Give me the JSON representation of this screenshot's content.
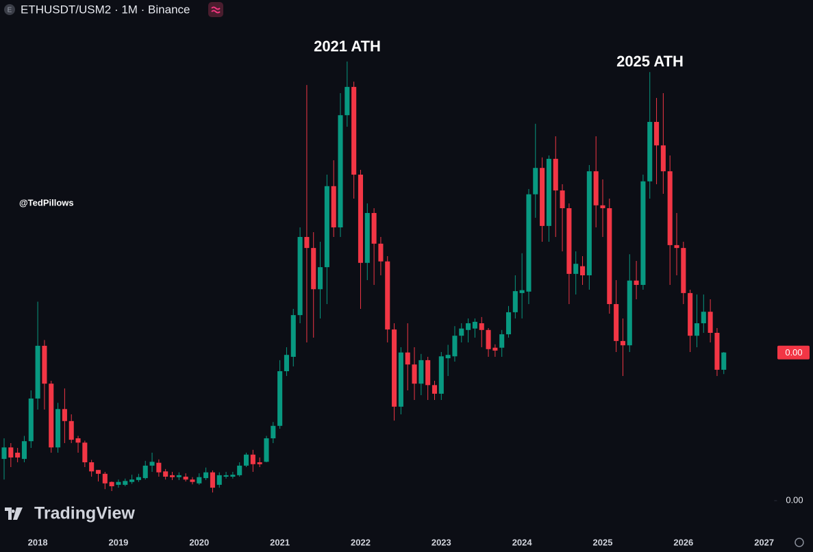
{
  "header": {
    "symbol_icon": "E",
    "title": "ETHUSDT/USM2 · 1M · Binance"
  },
  "watermark": "TradingView",
  "author": "@TedPillows",
  "chart_data": {
    "type": "candlestick",
    "annotations": [
      "2021 ATH",
      "2025 ATH"
    ],
    "up_color": "#089981",
    "down_color": "#f23645",
    "price_tag": "0.00",
    "ylim": [
      -7,
      100
    ],
    "yticks": [
      {
        "value": 0,
        "label": "0.00"
      }
    ],
    "categories": [
      null,
      null,
      null,
      null,
      null,
      "2018",
      null,
      null,
      null,
      null,
      null,
      null,
      null,
      null,
      null,
      null,
      null,
      "2019",
      null,
      null,
      null,
      null,
      null,
      null,
      null,
      null,
      null,
      null,
      null,
      "2020",
      null,
      null,
      null,
      null,
      null,
      null,
      null,
      null,
      null,
      null,
      null,
      "2021",
      null,
      null,
      null,
      null,
      null,
      null,
      null,
      null,
      null,
      null,
      null,
      "2022",
      null,
      null,
      null,
      null,
      null,
      null,
      null,
      null,
      null,
      null,
      null,
      "2023",
      null,
      null,
      null,
      null,
      null,
      null,
      null,
      null,
      null,
      null,
      null,
      "2024",
      null,
      null,
      null,
      null,
      null,
      null,
      null,
      null,
      null,
      null,
      null,
      "2025",
      null,
      null,
      null,
      null,
      null,
      null,
      null,
      null,
      null,
      null,
      null,
      "2026",
      null,
      null,
      null,
      null,
      null,
      null,
      null,
      null,
      null,
      null,
      null,
      "2027",
      null
    ],
    "open": [
      8.7,
      11.1,
      10,
      8.7,
      12.4,
      21.3,
      32.3,
      24.4,
      11.1,
      19.1,
      16.6,
      13,
      12.1,
      8,
      6.4,
      5.6,
      3.9,
      3.3,
      3.3,
      3.9,
      4.3,
      4.7,
      7.3,
      7.9,
      6.1,
      5.3,
      4.9,
      5,
      4.4,
      3.6,
      4.7,
      5.9,
      3.3,
      5,
      5,
      5.3,
      7.3,
      9.6,
      8,
      8.1,
      13,
      15.6,
      27,
      30,
      38.7,
      55,
      52.7,
      44.1,
      48.7,
      65.6,
      57,
      80.4,
      86.3,
      68,
      49.6,
      60,
      53.6,
      49.9,
      35.7,
      19.6,
      30.9,
      28.4,
      24.4,
      29.3,
      24.1,
      22.3,
      29.7,
      30.1,
      34.4,
      35.6,
      35.9,
      37,
      35.6,
      31.9,
      31.9,
      34.7,
      39.3,
      43.3,
      43.6,
      63.9,
      69.4,
      57.3,
      71.3,
      64.7,
      61,
      47.3,
      48.9,
      47,
      68.7,
      61.6,
      61,
      41,
      33.3,
      32.4,
      45.9,
      45,
      66.6,
      79,
      74.1,
      68.7,
      53.3,
      52.7,
      43.3,
      34.4,
      37,
      39.4,
      35,
      27.3,
      null,
      null,
      null,
      null,
      null,
      null,
      null
    ],
    "high": [
      13,
      12,
      11,
      13.5,
      23,
      41.5,
      33.5,
      25,
      20.4,
      23.4,
      18,
      13.5,
      12.5,
      8.5,
      6.4,
      6,
      4,
      4.4,
      4.6,
      5.4,
      5.6,
      8.3,
      10,
      8.6,
      6.6,
      6,
      5.9,
      5.7,
      4.9,
      5.7,
      6.9,
      6.3,
      5.9,
      6,
      6,
      8,
      10,
      10.6,
      9,
      13.5,
      16.4,
      29.3,
      32,
      40,
      57,
      86.7,
      56,
      54,
      68,
      71,
      85,
      91.6,
      87.4,
      69,
      62,
      61,
      55,
      51,
      37,
      32,
      37,
      32,
      30.6,
      30,
      25,
      31,
      32.5,
      36.4,
      37,
      38,
      38,
      38.3,
      36,
      32.6,
      35.6,
      40.6,
      47,
      51.6,
      65,
      78.6,
      71.6,
      72,
      76,
      66,
      62,
      52,
      51,
      70,
      76,
      67,
      63,
      46,
      38,
      51.4,
      50,
      68,
      89.4,
      84,
      85,
      72,
      60,
      54,
      44,
      43,
      43,
      42,
      36,
      31,
      null,
      null,
      null,
      null,
      null,
      null,
      null
    ],
    "low": [
      4.4,
      7,
      8,
      8,
      11,
      19,
      19,
      10,
      10,
      12,
      12,
      10,
      7,
      5,
      4,
      2.4,
      2,
      2.7,
      3,
      3.5,
      3.9,
      4.4,
      6,
      5,
      4.4,
      4.3,
      4.3,
      4,
      3.4,
      3.3,
      4.3,
      1.7,
      2.7,
      4.6,
      4.6,
      5,
      7,
      6,
      7,
      8,
      12,
      15,
      26,
      28,
      37,
      33,
      34,
      38,
      41,
      55,
      55,
      78,
      63,
      40,
      46,
      45,
      47,
      33,
      16.7,
      18,
      23,
      21,
      22,
      21,
      21,
      21,
      26,
      29,
      33,
      33,
      34,
      32,
      30,
      30,
      30,
      34,
      38,
      38,
      41,
      59,
      54,
      54,
      55,
      52,
      41,
      43,
      45,
      44,
      57,
      55,
      39,
      31,
      26,
      31,
      42,
      44,
      63,
      66,
      64,
      45,
      47,
      41,
      31,
      32,
      35,
      33,
      26,
      26.4,
      null,
      null,
      null,
      null,
      null,
      null,
      null
    ],
    "close": [
      11.1,
      9,
      9,
      12.4,
      21.3,
      32.3,
      24.4,
      11.1,
      19.1,
      16.6,
      12.7,
      12.1,
      8,
      6.1,
      5.6,
      3.6,
      3,
      3.9,
      4.1,
      4.4,
      4.9,
      7.3,
      8.1,
      5.9,
      5,
      4.9,
      5.3,
      4.4,
      3.9,
      4.9,
      5.9,
      2.7,
      5.3,
      5.3,
      5.4,
      7.3,
      9.6,
      7.6,
      7.6,
      13,
      15.6,
      27,
      30.4,
      38.7,
      55,
      52.7,
      44.1,
      48.7,
      65.6,
      57,
      80.4,
      86.3,
      68,
      49.6,
      60,
      53.6,
      49.9,
      35.7,
      19.6,
      30.9,
      28.4,
      24.4,
      29.3,
      24.1,
      22.3,
      30.1,
      30.4,
      34.4,
      35.9,
      37,
      37.3,
      35.6,
      31.6,
      31.3,
      34.7,
      39.3,
      43.7,
      43.9,
      63.9,
      69.4,
      57.3,
      71.3,
      64.7,
      61,
      47.3,
      49.4,
      47,
      68.7,
      61.6,
      61,
      41,
      33.3,
      32.4,
      45.9,
      45,
      66.6,
      79,
      74.1,
      68.7,
      53.3,
      52.7,
      43.3,
      34.4,
      37,
      39.4,
      35,
      27.3,
      30.9,
      null,
      null,
      null,
      null,
      null,
      null,
      null
    ]
  }
}
